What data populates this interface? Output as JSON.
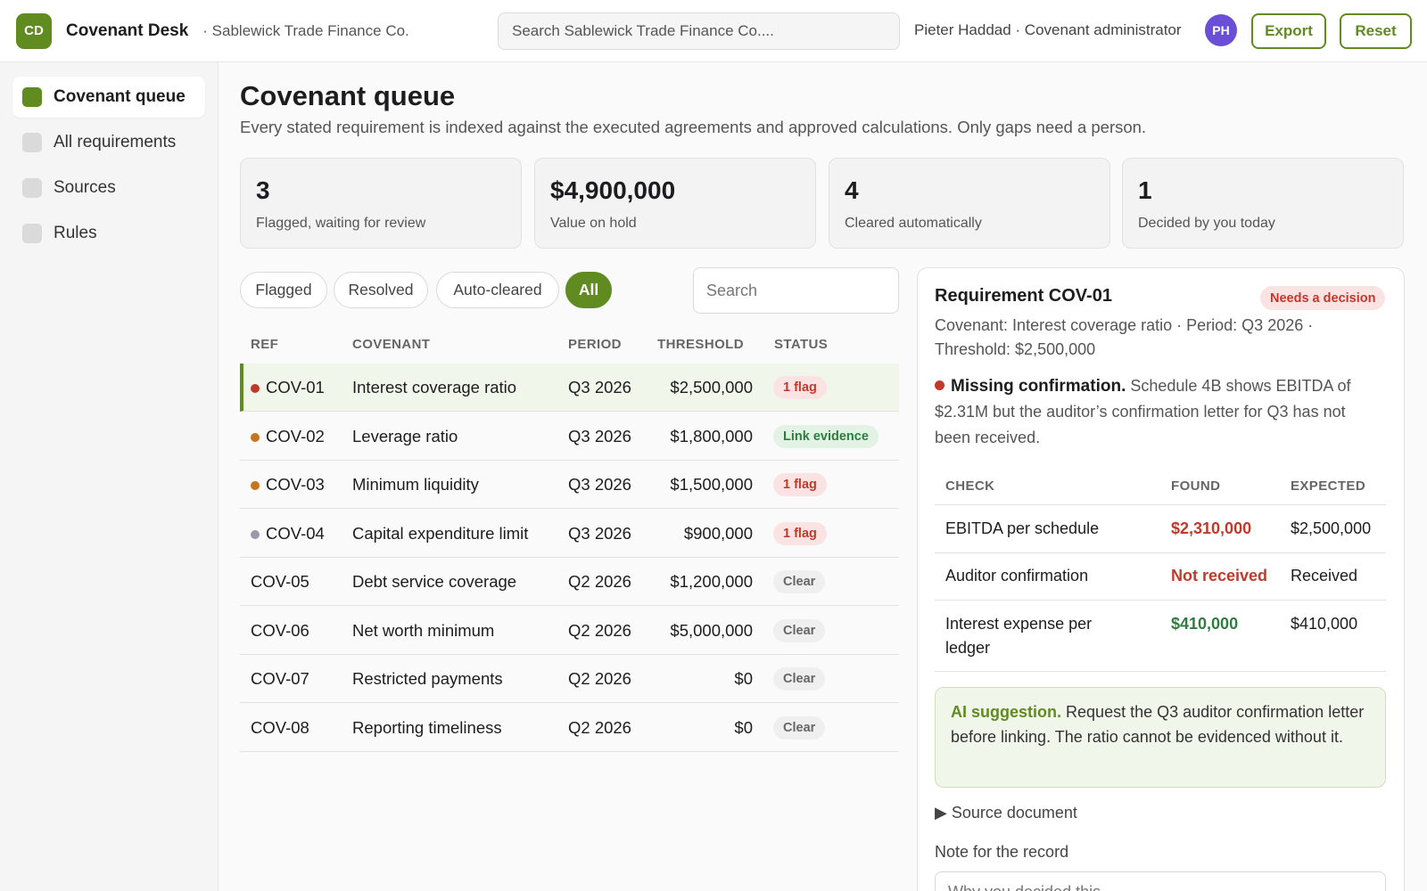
{
  "topbar": {
    "logo_initials": "CD",
    "app_title": "Covenant Desk",
    "org_name": "· Sablewick Trade Finance Co.",
    "search_placeholder": "Search Sablewick Trade Finance Co....",
    "user_label": "Pieter Haddad · Covenant administrator",
    "avatar_initials": "PH",
    "export_label": "Export",
    "reset_label": "Reset"
  },
  "sidebar": {
    "items": [
      {
        "label": "Covenant queue",
        "active": true
      },
      {
        "label": "All requirements",
        "active": false
      },
      {
        "label": "Sources",
        "active": false
      },
      {
        "label": "Rules",
        "active": false
      }
    ]
  },
  "main": {
    "title": "Covenant queue",
    "subtitle": "Every stated requirement is indexed against the executed agreements and approved calculations. Only gaps need a person.",
    "stats": [
      {
        "value": "3",
        "label": "Flagged, waiting for review"
      },
      {
        "value": "$4,900,000",
        "label": "Value on hold"
      },
      {
        "value": "4",
        "label": "Cleared automatically"
      },
      {
        "value": "1",
        "label": "Decided by you today"
      }
    ],
    "filters": [
      "Flagged",
      "Resolved",
      "Auto-cleared",
      "All"
    ],
    "active_filter": "All",
    "search_placeholder": "Search",
    "columns": [
      "REF",
      "COVENANT",
      "PERIOD",
      "THRESHOLD",
      "STATUS"
    ],
    "rows": [
      {
        "ref": "COV-01",
        "covenant": "Interest coverage ratio",
        "period": "Q3 2026",
        "threshold": "$2,500,000",
        "status": "1 flag",
        "status_kind": "flag",
        "dot": "#c0392b",
        "selected": true
      },
      {
        "ref": "COV-02",
        "covenant": "Leverage ratio",
        "period": "Q3 2026",
        "threshold": "$1,800,000",
        "status": "Link evidence",
        "status_kind": "link",
        "dot": "#c9731d",
        "selected": false
      },
      {
        "ref": "COV-03",
        "covenant": "Minimum liquidity",
        "period": "Q3 2026",
        "threshold": "$1,500,000",
        "status": "1 flag",
        "status_kind": "flag",
        "dot": "#c9731d",
        "selected": false
      },
      {
        "ref": "COV-04",
        "covenant": "Capital expenditure limit",
        "period": "Q3 2026",
        "threshold": "$900,000",
        "status": "1 flag",
        "status_kind": "flag",
        "dot": "#9a9aa8",
        "selected": false
      },
      {
        "ref": "COV-05",
        "covenant": "Debt service coverage",
        "period": "Q2 2026",
        "threshold": "$1,200,000",
        "status": "Clear",
        "status_kind": "clear",
        "dot": "",
        "selected": false
      },
      {
        "ref": "COV-06",
        "covenant": "Net worth minimum",
        "period": "Q2 2026",
        "threshold": "$5,000,000",
        "status": "Clear",
        "status_kind": "clear",
        "dot": "",
        "selected": false
      },
      {
        "ref": "COV-07",
        "covenant": "Restricted payments",
        "period": "Q2 2026",
        "threshold": "$0",
        "status": "Clear",
        "status_kind": "clear",
        "dot": "",
        "selected": false
      },
      {
        "ref": "COV-08",
        "covenant": "Reporting timeliness",
        "period": "Q2 2026",
        "threshold": "$0",
        "status": "Clear",
        "status_kind": "clear",
        "dot": "",
        "selected": false
      }
    ]
  },
  "detail": {
    "title": "Requirement COV-01",
    "badge": "Needs a decision",
    "meta": "Covenant: Interest coverage ratio · Period: Q3 2026 · Threshold: $2,500,000",
    "issue_title": "Missing confirmation.",
    "issue_text": "Schedule 4B shows EBITDA of $2.31M but the auditor’s confirmation letter for Q3 has not been received.",
    "check_columns": [
      "CHECK",
      "FOUND",
      "EXPECTED"
    ],
    "checks": [
      {
        "check": "EBITDA per schedule",
        "found": "$2,310,000",
        "expected": "$2,500,000",
        "found_kind": "red"
      },
      {
        "check": "Auditor confirmation",
        "found": "Not received",
        "expected": "Received",
        "found_kind": "red"
      },
      {
        "check": "Interest expense per ledger",
        "found": "$410,000",
        "expected": "$410,000",
        "found_kind": "green"
      }
    ],
    "ai_label": "AI suggestion.",
    "ai_text": "Request the Q3 auditor confirmation letter before linking. The ratio cannot be evidenced without it.",
    "source_doc": "▶ Source document",
    "note_label": "Note for the record",
    "note_placeholder": "Why you decided this..."
  },
  "colors": {
    "accent": "#5f8b21",
    "flag": "#c0392b",
    "ok": "#2e7d3e",
    "avatar": "#6a4fd6"
  }
}
